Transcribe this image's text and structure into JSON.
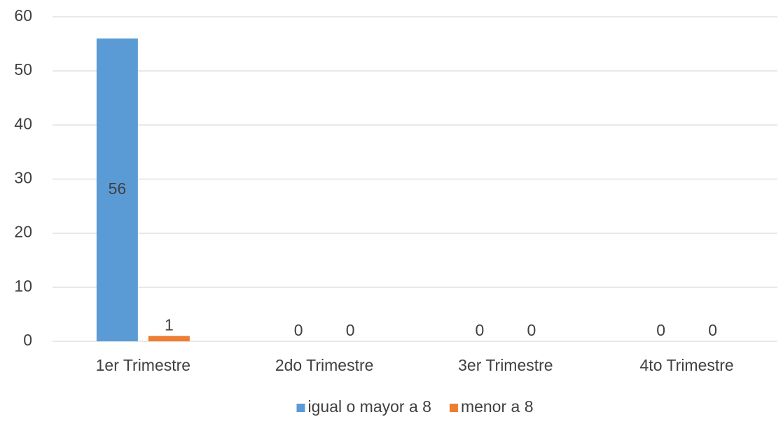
{
  "chart_data": {
    "type": "bar",
    "categories": [
      "1er Trimestre",
      "2do Trimestre",
      "3er Trimestre",
      "4to Trimestre"
    ],
    "series": [
      {
        "name": "igual o mayor a 8",
        "color": "#5b9bd5",
        "values": [
          56,
          0,
          0,
          0
        ]
      },
      {
        "name": "menor a 8",
        "color": "#ed7d31",
        "values": [
          1,
          0,
          0,
          0
        ]
      }
    ],
    "ylim": [
      0,
      60
    ],
    "yticks": [
      0,
      10,
      20,
      30,
      40,
      50,
      60
    ],
    "grid": true,
    "legend": "bottom"
  }
}
